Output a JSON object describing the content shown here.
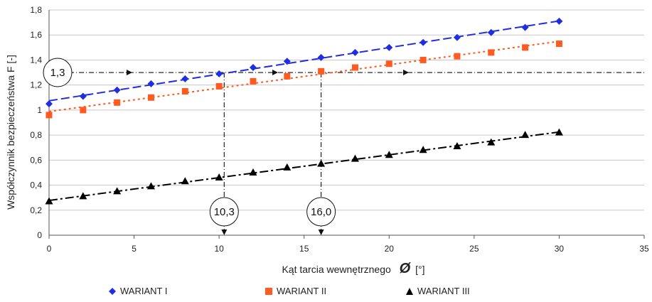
{
  "chart_data": {
    "type": "line",
    "xlabel_prefix": "Kąt tarcia wewnętrznego",
    "xlabel_symbol": "Ø",
    "xlabel_unit": "[°]",
    "ylabel": "Współczynnik bezpieczeństwa F [-]",
    "xlim": [
      0,
      35
    ],
    "ylim": [
      0,
      1.8
    ],
    "xticks": [
      0,
      5,
      10,
      15,
      20,
      25,
      30,
      35
    ],
    "xtick_labels": [
      "0",
      "5",
      "10",
      "15",
      "20",
      "25",
      "30",
      "35"
    ],
    "yticks": [
      0,
      0.2,
      0.4,
      0.6,
      0.8,
      1.0,
      1.2,
      1.4,
      1.6,
      1.8
    ],
    "ytick_labels": [
      "0",
      "0,2",
      "0,4",
      "0,6",
      "0,8",
      "1",
      "1,2",
      "1,4",
      "1,6",
      "1,8"
    ],
    "grid": "horizontal",
    "legend_position": "bottom",
    "x": [
      0,
      2,
      4,
      6,
      8,
      10,
      12,
      14,
      16,
      18,
      20,
      22,
      24,
      26,
      28,
      30
    ],
    "series": [
      {
        "name": "WARIANT I",
        "color": "#1f2fe0",
        "marker": "diamond",
        "values": [
          1.05,
          1.11,
          1.16,
          1.21,
          1.25,
          1.29,
          1.34,
          1.39,
          1.42,
          1.46,
          1.5,
          1.54,
          1.58,
          1.62,
          1.66,
          1.71
        ]
      },
      {
        "name": "WARIANT II",
        "color": "#ff5a1f",
        "marker": "square",
        "values": [
          0.96,
          1.0,
          1.06,
          1.1,
          1.15,
          1.19,
          1.23,
          1.27,
          1.31,
          1.34,
          1.37,
          1.4,
          1.43,
          1.46,
          1.5,
          1.53
        ]
      },
      {
        "name": "WARIANT III",
        "color": "#000000",
        "marker": "triangle",
        "values": [
          0.27,
          0.31,
          0.35,
          0.39,
          0.43,
          0.46,
          0.5,
          0.54,
          0.57,
          0.61,
          0.64,
          0.68,
          0.71,
          0.74,
          0.8,
          0.82
        ]
      }
    ],
    "annotations": {
      "hline": {
        "y": 1.3,
        "label": "1,3"
      },
      "vlines": [
        {
          "x": 10.3,
          "label": "10,3"
        },
        {
          "x": 16.0,
          "label": "16,0"
        }
      ]
    }
  }
}
